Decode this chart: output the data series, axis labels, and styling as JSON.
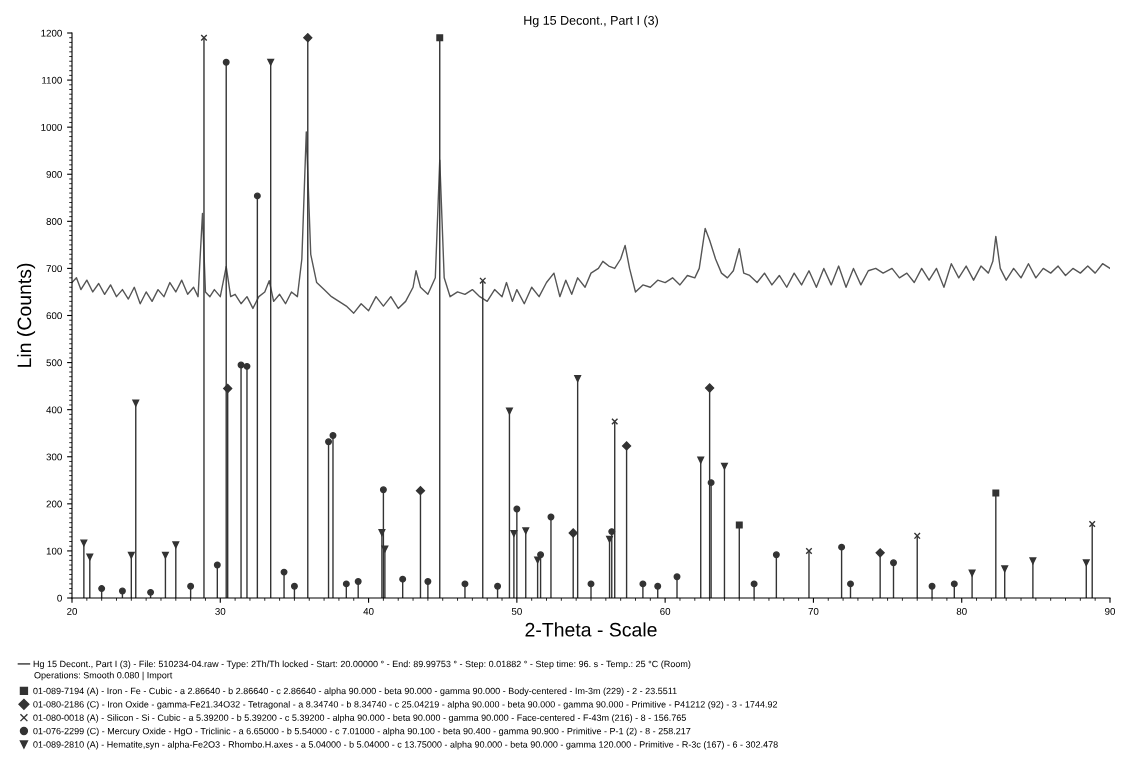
{
  "chart_data": {
    "type": "line",
    "title": "Hg 15 Decont., Part I (3)",
    "xlabel": "2-Theta - Scale",
    "ylabel": "Lin (Counts)",
    "xlim": [
      20,
      90
    ],
    "xticks": [
      20,
      30,
      40,
      50,
      60,
      70,
      80,
      90
    ],
    "ylim": [
      0,
      1200
    ],
    "yticks": [
      0,
      100,
      200,
      300,
      400,
      500,
      600,
      700,
      800,
      900,
      1000,
      1100,
      1200
    ],
    "grid": false,
    "legend": "bottom",
    "annotations": [
      "Operations: Smooth 0.080 | Import"
    ],
    "series": [
      {
        "name": "Hg 15 Decont., Part I (3) - File: 510234-04.raw - Type: 2Th/Th locked - Start: 20.00000 ° - End: 89.99753 ° - Step: 0.01882 ° - Step time: 96. s - Temp.: 25 °C (Room)",
        "color": "#555555",
        "marker": "none",
        "line_style": "solid",
        "x": [
          20,
          20.3,
          20.6,
          21.0,
          21.4,
          21.8,
          22.2,
          22.6,
          23.0,
          23.4,
          23.8,
          24.2,
          24.6,
          25.0,
          25.4,
          25.8,
          26.2,
          26.6,
          27.0,
          27.4,
          27.8,
          28.2,
          28.5,
          28.8,
          29.0,
          29.3,
          29.6,
          30.0,
          30.4,
          30.7,
          31.0,
          31.4,
          31.8,
          32.2,
          32.6,
          33.0,
          33.3,
          33.6,
          34.0,
          34.4,
          34.8,
          35.2,
          35.5,
          35.8,
          36.1,
          36.5,
          37.0,
          37.5,
          38.0,
          38.5,
          39.0,
          39.5,
          40.0,
          40.5,
          41.0,
          41.5,
          42.0,
          42.5,
          43.0,
          43.2,
          43.5,
          44.0,
          44.5,
          44.8,
          45.1,
          45.5,
          46.0,
          46.5,
          47.0,
          47.5,
          48.0,
          48.5,
          49.0,
          49.3,
          49.7,
          50.0,
          50.5,
          51.0,
          51.5,
          52.0,
          52.5,
          52.9,
          53.3,
          53.7,
          54.1,
          54.6,
          55.0,
          55.5,
          55.8,
          56.2,
          56.6,
          57.0,
          57.3,
          57.6,
          58.0,
          58.5,
          59.0,
          59.5,
          60.0,
          60.5,
          61.0,
          61.5,
          62.0,
          62.3,
          62.7,
          63.0,
          63.4,
          63.8,
          64.2,
          64.6,
          65.0,
          65.3,
          65.7,
          66.2,
          66.7,
          67.2,
          67.7,
          68.2,
          68.7,
          69.2,
          69.7,
          70.2,
          70.7,
          71.2,
          71.7,
          72.2,
          72.7,
          73.2,
          73.7,
          74.2,
          74.7,
          75.3,
          75.8,
          76.3,
          76.8,
          77.3,
          77.8,
          78.3,
          78.8,
          79.3,
          79.8,
          80.3,
          80.8,
          81.3,
          81.8,
          82.1,
          82.3,
          82.6,
          83.0,
          83.5,
          84.0,
          84.5,
          85.0,
          85.5,
          86.0,
          86.5,
          87.0,
          87.5,
          88.0,
          88.5,
          89.0,
          89.5,
          90.0
        ],
        "values": [
          670,
          680,
          655,
          675,
          650,
          668,
          645,
          665,
          640,
          655,
          635,
          660,
          625,
          650,
          630,
          655,
          640,
          670,
          650,
          675,
          645,
          660,
          640,
          817,
          650,
          640,
          655,
          640,
          704,
          640,
          645,
          625,
          640,
          615,
          640,
          650,
          674,
          630,
          645,
          625,
          650,
          640,
          720,
          990,
          730,
          670,
          655,
          640,
          630,
          620,
          605,
          625,
          610,
          640,
          620,
          640,
          615,
          630,
          660,
          695,
          660,
          645,
          680,
          930,
          680,
          640,
          650,
          645,
          655,
          640,
          630,
          655,
          640,
          670,
          630,
          655,
          625,
          660,
          640,
          670,
          690,
          640,
          675,
          645,
          680,
          660,
          690,
          700,
          715,
          705,
          700,
          720,
          749,
          700,
          650,
          665,
          660,
          675,
          670,
          680,
          665,
          685,
          680,
          700,
          785,
          760,
          720,
          690,
          680,
          695,
          742,
          690,
          685,
          670,
          690,
          665,
          685,
          660,
          690,
          665,
          695,
          660,
          700,
          665,
          705,
          660,
          700,
          665,
          695,
          700,
          690,
          700,
          680,
          690,
          670,
          700,
          675,
          700,
          660,
          710,
          680,
          705,
          675,
          705,
          690,
          715,
          768,
          700,
          675,
          700,
          680,
          710,
          680,
          700,
          690,
          705,
          685,
          700,
          690,
          705,
          690,
          710,
          700
        ]
      },
      {
        "name": "01-089-7194 (A) - Iron - Fe - Cubic - a 2.86640 - b 2.86640 - c 2.86640 - alpha 90.000 - beta 90.000 - gamma 90.000 - Body-centered - Im-3m (229) - 2 - 23.5511",
        "type": "lollipop",
        "color": "#333333",
        "marker": "square",
        "x": [
          44.8,
          65.0,
          82.3
        ],
        "values": [
          1190,
          155,
          223
        ]
      },
      {
        "name": "01-080-2186 (C) - Iron Oxide - gamma-Fe21.34O32 - Tetragonal - a 8.34740 - b 8.34740 - c 25.04219 - alpha 90.000 - beta 90.000 - gamma 90.000 - Primitive - P41212 (92) - 3 - 1744.92",
        "type": "lollipop",
        "color": "#333333",
        "marker": "diamond",
        "x": [
          30.5,
          35.9,
          43.5,
          53.8,
          57.4,
          63.0,
          74.5
        ],
        "values": [
          445,
          1190,
          228,
          138,
          323,
          446,
          96
        ]
      },
      {
        "name": "01-080-0018 (A) - Silicon - Si - Cubic - a 5.39200 - b 5.39200 - c 5.39200 - alpha 90.000 - beta 90.000 - gamma 90.000 - Face-centered - F-43m (216) - 8 - 156.765",
        "type": "lollipop",
        "color": "#333333",
        "marker": "cross",
        "x": [
          28.9,
          47.7,
          56.6,
          69.7,
          77.0,
          88.8
        ],
        "values": [
          1190,
          674,
          375,
          100,
          132,
          157
        ]
      },
      {
        "name": "01-076-2299 (C) - Mercury Oxide - HgO - Triclinic - a 6.65000 - b 5.54000 - c 7.01000 - alpha 90.100 - beta 90.400 - gamma 90.900 - Primitive - P-1 (2) - 8 - 258.217",
        "type": "lollipop",
        "color": "#333333",
        "marker": "circle",
        "x": [
          22.0,
          23.4,
          25.3,
          28.0,
          29.8,
          30.4,
          31.4,
          31.8,
          32.5,
          34.3,
          35.0,
          37.3,
          37.6,
          38.5,
          39.3,
          41.0,
          42.3,
          44.0,
          46.5,
          48.7,
          50.0,
          51.6,
          52.3,
          55.0,
          56.4,
          58.5,
          59.5,
          60.8,
          63.1,
          66.0,
          67.5,
          71.9,
          72.5,
          75.4,
          78.0,
          79.5
        ],
        "values": [
          20,
          15,
          12,
          25,
          70,
          1138,
          495,
          492,
          854,
          55,
          25,
          332,
          345,
          30,
          35,
          230,
          40,
          35,
          30,
          25,
          189,
          92,
          172,
          30,
          141,
          30,
          25,
          45,
          245,
          30,
          92,
          108,
          30,
          75,
          25,
          30
        ]
      },
      {
        "name": "01-089-2810 (A) - Hematite,syn - alpha-Fe2O3 - Rhombo.H.axes - a 5.04000 - b 5.04000 - c 13.75000 - alpha 90.000 - beta 90.000 - gamma 120.000 - Primitive - R-3c (167) - 6 - 302.478",
        "type": "lollipop",
        "color": "#333333",
        "marker": "triangle",
        "x": [
          20.8,
          21.2,
          24.0,
          24.3,
          26.3,
          27.0,
          33.4,
          40.9,
          41.1,
          49.5,
          49.8,
          50.6,
          51.4,
          54.1,
          56.25,
          62.4,
          64.0,
          80.7,
          82.9,
          84.8,
          88.4
        ],
        "values": [
          117,
          87,
          91,
          414,
          91,
          113,
          1138,
          139,
          104,
          397,
          137,
          143,
          81,
          466,
          125,
          293,
          280,
          53,
          62,
          79,
          75
        ]
      }
    ]
  }
}
